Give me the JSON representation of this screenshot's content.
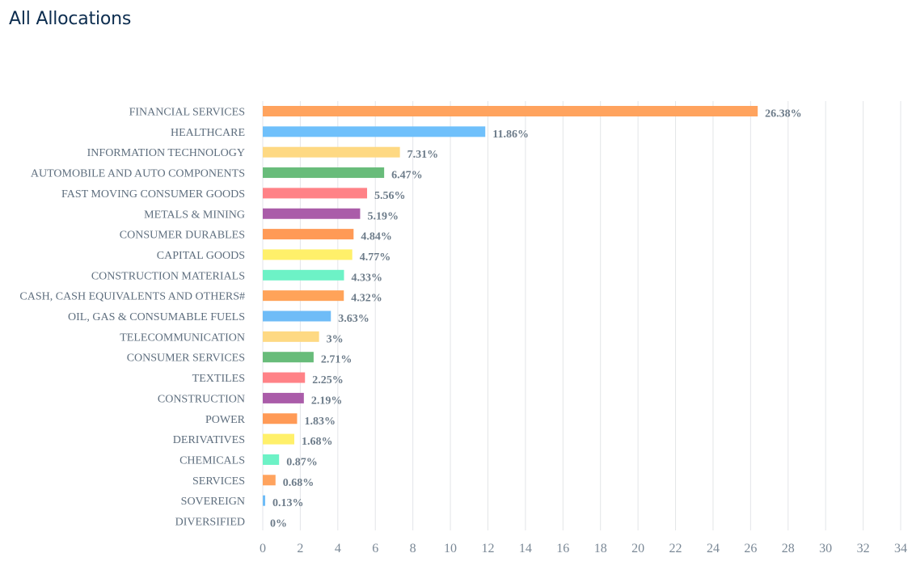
{
  "page": {
    "title": "All Allocations"
  },
  "chart_data": {
    "type": "bar",
    "orientation": "horizontal",
    "title": "",
    "xlabel": "",
    "ylabel": "",
    "xlim": [
      0,
      34
    ],
    "ticks": [
      0,
      2,
      4,
      6,
      8,
      10,
      12,
      14,
      16,
      18,
      20,
      22,
      24,
      26,
      28,
      30,
      32,
      34
    ],
    "grid": true,
    "categories": [
      "FINANCIAL SERVICES",
      "HEALTHCARE",
      "INFORMATION TECHNOLOGY",
      "AUTOMOBILE AND AUTO COMPONENTS",
      "FAST MOVING CONSUMER GOODS",
      "METALS & MINING",
      "CONSUMER DURABLES",
      "CAPITAL GOODS",
      "CONSTRUCTION MATERIALS",
      "CASH, CASH EQUIVALENTS AND OTHERS#",
      "OIL, GAS & CONSUMABLE FUELS",
      "TELECOMMUNICATION",
      "CONSUMER SERVICES",
      "TEXTILES",
      "CONSTRUCTION",
      "POWER",
      "DERIVATIVES",
      "CHEMICALS",
      "SERVICES",
      "SOVEREIGN",
      "DIVERSIFIED"
    ],
    "values": [
      26.38,
      11.86,
      7.31,
      6.47,
      5.56,
      5.19,
      4.84,
      4.77,
      4.33,
      4.32,
      3.63,
      3,
      2.71,
      2.25,
      2.19,
      1.83,
      1.68,
      0.87,
      0.68,
      0.13,
      0
    ],
    "data_labels": [
      "26.38%",
      "11.86%",
      "7.31%",
      "6.47%",
      "5.56%",
      "5.19%",
      "4.84%",
      "4.77%",
      "4.33%",
      "4.32%",
      "3.63%",
      "3%",
      "2.71%",
      "2.25%",
      "2.19%",
      "1.83%",
      "1.68%",
      "0.87%",
      "0.68%",
      "0.13%",
      "0%"
    ],
    "colors": [
      "#ffa35e",
      "#6fc0fb",
      "#fed983",
      "#68bc7a",
      "#ff8287",
      "#aa5ca9",
      "#ff9a56",
      "#fff06a",
      "#6df2c6",
      "#ffa359",
      "#6fbcf7",
      "#fed983",
      "#68bc7a",
      "#ff8287",
      "#aa5ca9",
      "#ff9a56",
      "#fff06a",
      "#6df2c6",
      "#ffa35e",
      "#6fbcf7",
      "#fed983"
    ]
  }
}
